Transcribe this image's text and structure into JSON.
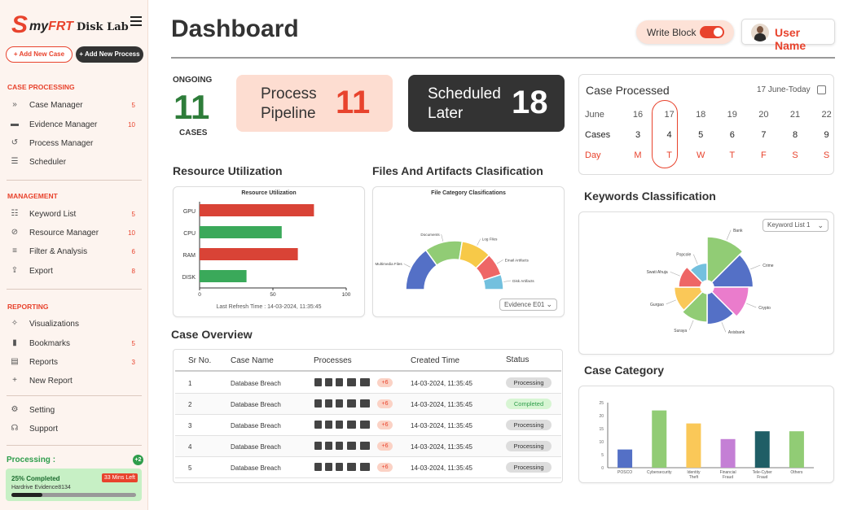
{
  "brand": {
    "logo_my": "my",
    "logo_frt": "FRT",
    "logo_disklab": "Disk Lab"
  },
  "sidebar": {
    "add_case": "+ Add New Case",
    "add_process": "+ Add New Process",
    "sections": [
      {
        "title": "CASE PROCESSING",
        "items": [
          {
            "label": "Case Manager",
            "count": "5",
            "icon": "double-chevron-icon"
          },
          {
            "label": "Evidence Manager",
            "count": "10",
            "icon": "file-icon"
          },
          {
            "label": "Process Manager",
            "count": "",
            "icon": "history-icon"
          },
          {
            "label": "Scheduler",
            "count": "",
            "icon": "stack-icon"
          }
        ]
      },
      {
        "title": "MANAGEMENT",
        "items": [
          {
            "label": "Keyword List",
            "count": "5",
            "icon": "list-icon"
          },
          {
            "label": "Resource Manager",
            "count": "10",
            "icon": "search-doc-icon"
          },
          {
            "label": "Filter & Analysis",
            "count": "6",
            "icon": "filter-icon"
          },
          {
            "label": "Export",
            "count": "8",
            "icon": "export-icon"
          }
        ]
      },
      {
        "title": "REPORTING",
        "items": [
          {
            "label": "Visualizations",
            "count": "",
            "icon": "sparkle-icon"
          },
          {
            "label": "Bookmarks",
            "count": "5",
            "icon": "bookmark-icon"
          },
          {
            "label": "Reports",
            "count": "3",
            "icon": "report-icon"
          },
          {
            "label": "New Report",
            "count": "",
            "icon": "plus-icon"
          }
        ]
      }
    ],
    "bottom": [
      {
        "label": "Setting",
        "icon": "gear-icon"
      },
      {
        "label": "Support",
        "icon": "headset-icon"
      }
    ],
    "processing": {
      "title": "Processing :",
      "badge": "+2",
      "completed": "25% Completed",
      "time_left": "33 Mins Left",
      "file": "Hardrive Evidence8134",
      "progress": 0.25
    }
  },
  "header": {
    "title": "Dashboard",
    "write_block": "Write Block",
    "user_name": "User Name"
  },
  "stats": {
    "ongoing_label": "ONGOING",
    "ongoing_value": "11",
    "cases_label": "CASES",
    "pipeline_label": "Process Pipeline",
    "pipeline_value": "11",
    "scheduled_label": "Scheduled Later",
    "scheduled_value": "18"
  },
  "case_processed": {
    "title": "Case Processed",
    "date": "17 June-Today",
    "row_labels": [
      "June",
      "Cases",
      "Day"
    ],
    "dates": [
      "16",
      "17",
      "18",
      "19",
      "20",
      "21",
      "22"
    ],
    "cases": [
      "3",
      "4",
      "5",
      "6",
      "7",
      "8",
      "9"
    ],
    "days": [
      "M",
      "T",
      "W",
      "T",
      "F",
      "S",
      "S"
    ]
  },
  "resource": {
    "section_title": "Resource Utilization",
    "chart_title": "Resource Utilization",
    "refresh": "Last Refresh Time : 14-03-2024, 11:35:45"
  },
  "files": {
    "section_title": "Files And Artifacts Clasification",
    "chart_title": "File Category Clasifications",
    "select": "Evidence E01"
  },
  "keywords": {
    "section_title": "Keywords Classification",
    "select": "Keyword List 1"
  },
  "case_category": {
    "section_title": "Case Category"
  },
  "case_overview": {
    "title": "Case Overview",
    "headers": [
      "Sr No.",
      "Case Name",
      "Processes",
      "Created Time",
      "Status"
    ],
    "rows": [
      {
        "sr": "1",
        "name": "Database Breach",
        "more": "+6",
        "time": "14-03-2024, 11:35:45",
        "status": "Processing"
      },
      {
        "sr": "2",
        "name": "Database Breach",
        "more": "+6",
        "time": "14-03-2024, 11:35:45",
        "status": "Completed"
      },
      {
        "sr": "3",
        "name": "Database Breach",
        "more": "+6",
        "time": "14-03-2024, 11:35:45",
        "status": "Processing"
      },
      {
        "sr": "4",
        "name": "Database Breach",
        "more": "+6",
        "time": "14-03-2024, 11:35:45",
        "status": "Processing"
      },
      {
        "sr": "5",
        "name": "Database Breach",
        "more": "+6",
        "time": "14-03-2024, 11:35:45",
        "status": "Processing"
      }
    ]
  },
  "colors": {
    "accent": "#e8432d",
    "green": "#2e9d4b",
    "dark": "#333333"
  },
  "chart_data": [
    {
      "id": "resource",
      "type": "bar",
      "orientation": "horizontal",
      "title": "Resource Utilization",
      "categories": [
        "GPU",
        "CPU",
        "RAM",
        "DISK"
      ],
      "values": [
        78,
        56,
        67,
        32
      ],
      "colors": [
        "#d94336",
        "#3aa95a",
        "#d94336",
        "#3aa95a"
      ],
      "xlim": [
        0,
        100
      ],
      "xticks": [
        0,
        50,
        100
      ]
    },
    {
      "id": "files",
      "type": "pie",
      "variant": "semi-donut",
      "title": "File Category Clasifications",
      "categories": [
        "Multimedia Files",
        "Documents",
        "Log Files",
        "Email Artifacts",
        "Disk Artifacts"
      ],
      "values": [
        30,
        25,
        20,
        15,
        10
      ],
      "colors": [
        "#5470c6",
        "#91cc75",
        "#f7c948",
        "#ee6666",
        "#73c0de"
      ]
    },
    {
      "id": "keywords",
      "type": "pie",
      "variant": "nightingale-rose",
      "categories": [
        "Bank",
        "Crime",
        "Crypto",
        "Axisbank",
        "Suraya",
        "Gurgao",
        "Swati Ahuja",
        "Popcole"
      ],
      "values": [
        100,
        90,
        80,
        70,
        65,
        60,
        50,
        40
      ],
      "colors": [
        "#91cc75",
        "#5470c6",
        "#ea7ccc",
        "#5470c6",
        "#91cc75",
        "#fac858",
        "#ee6666",
        "#73c0de"
      ]
    },
    {
      "id": "case_category",
      "type": "bar",
      "categories": [
        "POSCO",
        "Cybersecurity",
        "Identity Theft",
        "Financial Fraud",
        "Tele-Cyber Fraud",
        "Others"
      ],
      "values": [
        7,
        22,
        17,
        11,
        14,
        14
      ],
      "colors": [
        "#5470c6",
        "#91cc75",
        "#fac858",
        "#c47fd5",
        "#1f5e66",
        "#91cc75"
      ],
      "ylim": [
        0,
        25
      ],
      "yticks": [
        0,
        5,
        10,
        15,
        20,
        25
      ]
    }
  ]
}
